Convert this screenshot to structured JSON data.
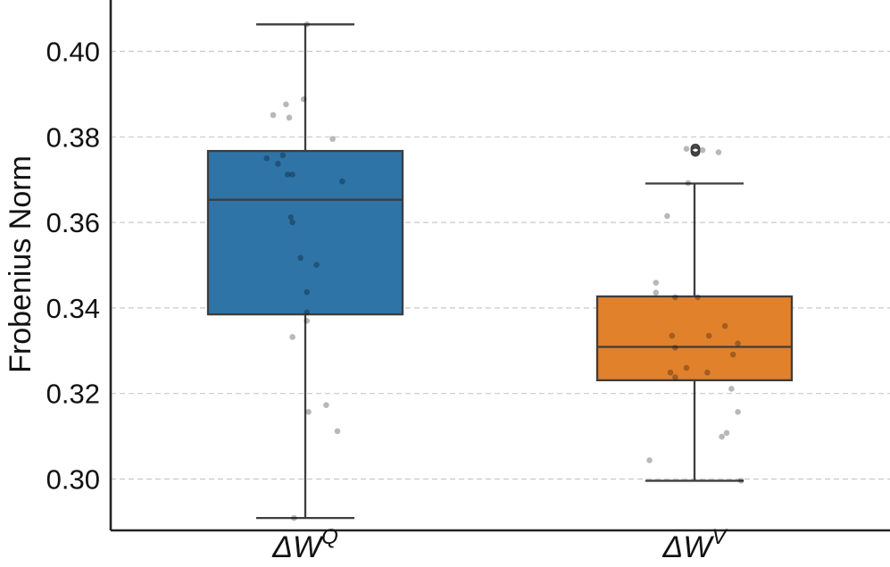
{
  "chart_data": {
    "type": "box",
    "title": "",
    "xlabel": "",
    "ylabel": "Frobenius Norm",
    "ylim": [
      0.288,
      0.412
    ],
    "yticks": [
      0.3,
      0.32,
      0.34,
      0.36,
      0.38,
      0.4
    ],
    "ytick_labels": [
      "0.30",
      "0.32",
      "0.34",
      "0.36",
      "0.38",
      "0.40"
    ],
    "grid": true,
    "categories": [
      {
        "label": "ΔWQ",
        "display": {
          "base": "ΔW",
          "sup": "Q"
        },
        "color": "#2f74a7",
        "box": {
          "whisker_low": 0.2909,
          "q1": 0.3385,
          "median": 0.3653,
          "q3": 0.3767,
          "whisker_high": 0.4063
        },
        "outliers": [],
        "points": [
          {
            "x": -0.2,
            "y": 0.3851
          },
          {
            "x": -0.12,
            "y": 0.3876
          },
          {
            "x": -0.01,
            "y": 0.3888
          },
          {
            "x": -0.1,
            "y": 0.3845
          },
          {
            "x": 0.17,
            "y": 0.3795
          },
          {
            "x": -0.24,
            "y": 0.375
          },
          {
            "x": -0.17,
            "y": 0.3737
          },
          {
            "x": -0.14,
            "y": 0.3757
          },
          {
            "x": -0.11,
            "y": 0.3712
          },
          {
            "x": -0.08,
            "y": 0.3712
          },
          {
            "x": 0.23,
            "y": 0.3696
          },
          {
            "x": -0.09,
            "y": 0.3612
          },
          {
            "x": -0.08,
            "y": 0.36
          },
          {
            "x": -0.03,
            "y": 0.3517
          },
          {
            "x": 0.07,
            "y": 0.3501
          },
          {
            "x": 0.01,
            "y": 0.3437
          },
          {
            "x": 0.01,
            "y": 0.339
          },
          {
            "x": 0.01,
            "y": 0.337
          },
          {
            "x": -0.08,
            "y": 0.3332
          },
          {
            "x": 0.13,
            "y": 0.3173
          },
          {
            "x": 0.02,
            "y": 0.3157
          },
          {
            "x": 0.2,
            "y": 0.3112
          },
          {
            "x": -0.07,
            "y": 0.2909
          },
          {
            "x": 0.01,
            "y": 0.4063
          }
        ]
      },
      {
        "label": "ΔWV",
        "display": {
          "base": "ΔW",
          "sup": "V"
        },
        "color": "#e1812c",
        "box": {
          "whisker_low": 0.2996,
          "q1": 0.3231,
          "median": 0.3309,
          "q3": 0.3427,
          "whisker_high": 0.3691
        },
        "outliers": [
          0.3773,
          0.3769,
          0.3765
        ],
        "points": [
          {
            "x": -0.05,
            "y": 0.3772
          },
          {
            "x": 0.05,
            "y": 0.3769
          },
          {
            "x": 0.15,
            "y": 0.3764
          },
          {
            "x": -0.04,
            "y": 0.3692
          },
          {
            "x": -0.17,
            "y": 0.3615
          },
          {
            "x": -0.24,
            "y": 0.3459
          },
          {
            "x": -0.24,
            "y": 0.3436
          },
          {
            "x": -0.12,
            "y": 0.3425
          },
          {
            "x": 0.02,
            "y": 0.3425
          },
          {
            "x": 0.19,
            "y": 0.3358
          },
          {
            "x": -0.14,
            "y": 0.3335
          },
          {
            "x": 0.09,
            "y": 0.3335
          },
          {
            "x": -0.12,
            "y": 0.3307
          },
          {
            "x": 0.27,
            "y": 0.3317
          },
          {
            "x": 0.24,
            "y": 0.3291
          },
          {
            "x": -0.05,
            "y": 0.326
          },
          {
            "x": -0.15,
            "y": 0.3249
          },
          {
            "x": -0.12,
            "y": 0.3238
          },
          {
            "x": 0.08,
            "y": 0.3249
          },
          {
            "x": 0.23,
            "y": 0.3211
          },
          {
            "x": 0.27,
            "y": 0.3157
          },
          {
            "x": 0.2,
            "y": 0.3108
          },
          {
            "x": 0.17,
            "y": 0.3099
          },
          {
            "x": -0.28,
            "y": 0.3044
          },
          {
            "x": 0.29,
            "y": 0.2996
          }
        ]
      }
    ]
  }
}
